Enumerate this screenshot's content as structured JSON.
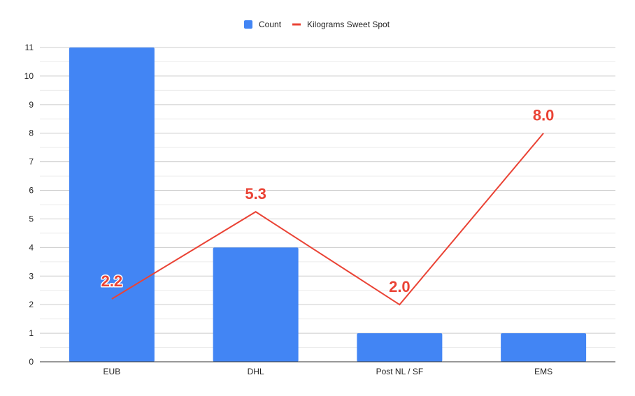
{
  "chart_data": {
    "type": "bar",
    "title": "",
    "xlabel": "",
    "ylabel": "",
    "categories": [
      "EUB",
      "DHL",
      "Post NL / SF",
      "EMS"
    ],
    "ylim": [
      0,
      11
    ],
    "yticks": [
      0,
      1,
      2,
      3,
      4,
      5,
      6,
      7,
      8,
      9,
      10,
      11
    ],
    "grid": true,
    "legend_position": "top",
    "series": [
      {
        "name": "Count",
        "type": "bar",
        "color": "#4285F4",
        "values": [
          11,
          4,
          1,
          1
        ]
      },
      {
        "name": "Kilograms Sweet Spot",
        "type": "line",
        "color": "#EA4335",
        "values": [
          2.2,
          5.25,
          2.0,
          8.0
        ],
        "labels": [
          "2.2",
          "5.3",
          "2.0",
          "8.0"
        ]
      }
    ]
  }
}
